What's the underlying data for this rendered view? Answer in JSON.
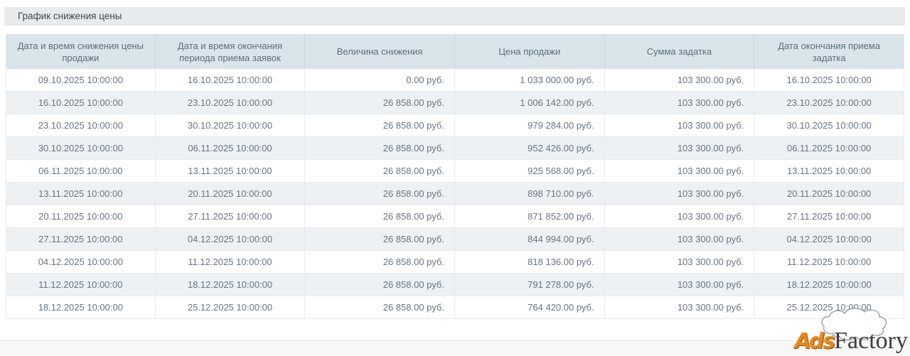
{
  "title": "График снижения цены",
  "table": {
    "columns": [
      {
        "label": "Дата и время снижения цены продажи",
        "align": "center"
      },
      {
        "label": "Дата и время окончания периода приема заявок",
        "align": "center"
      },
      {
        "label": "Величина снижения",
        "align": "right"
      },
      {
        "label": "Цена продажи",
        "align": "right"
      },
      {
        "label": "Сумма задатка",
        "align": "right"
      },
      {
        "label": "Дата окончания приема задатка",
        "align": "center"
      }
    ],
    "rows": [
      [
        "09.10.2025 10:00:00",
        "16.10.2025 10:00:00",
        "0.00 руб.",
        "1 033 000.00 руб.",
        "103 300.00 руб.",
        "16.10.2025 10:00:00"
      ],
      [
        "16.10.2025 10:00:00",
        "23.10.2025 10:00:00",
        "26 858.00 руб.",
        "1 006 142.00 руб.",
        "103 300.00 руб.",
        "23.10.2025 10:00:00"
      ],
      [
        "23.10.2025 10:00:00",
        "30.10.2025 10:00:00",
        "26 858.00 руб.",
        "979 284.00 руб.",
        "103 300.00 руб.",
        "30.10.2025 10:00:00"
      ],
      [
        "30.10.2025 10:00:00",
        "06.11.2025 10:00:00",
        "26 858.00 руб.",
        "952 426.00 руб.",
        "103 300.00 руб.",
        "06.11.2025 10:00:00"
      ],
      [
        "06.11.2025 10:00:00",
        "13.11.2025 10:00:00",
        "26 858.00 руб.",
        "925 568.00 руб.",
        "103 300.00 руб.",
        "13.11.2025 10:00:00"
      ],
      [
        "13.11.2025 10:00:00",
        "20.11.2025 10:00:00",
        "26 858.00 руб.",
        "898 710.00 руб.",
        "103 300.00 руб.",
        "20.11.2025 10:00:00"
      ],
      [
        "20.11.2025 10:00:00",
        "27.11.2025 10:00:00",
        "26 858.00 руб.",
        "871 852.00 руб.",
        "103 300.00 руб.",
        "27.11.2025 10:00:00"
      ],
      [
        "27.11.2025 10:00:00",
        "04.12.2025 10:00:00",
        "26 858.00 руб.",
        "844 994.00 руб.",
        "103 300.00 руб.",
        "04.12.2025 10:00:00"
      ],
      [
        "04.12.2025 10:00:00",
        "11.12.2025 10:00:00",
        "26 858.00 руб.",
        "818 136.00 руб.",
        "103 300.00 руб.",
        "11.12.2025 10:00:00"
      ],
      [
        "11.12.2025 10:00:00",
        "18.12.2025 10:00:00",
        "26 858.00 руб.",
        "791 278.00 руб.",
        "103 300.00 руб.",
        "18.12.2025 10:00:00"
      ],
      [
        "18.12.2025 10:00:00",
        "25.12.2025 10:00:00",
        "26 858.00 руб.",
        "764 420.00 руб.",
        "103 300.00 руб.",
        "25.12.2025 10:00:00"
      ]
    ]
  },
  "watermark": {
    "part1": "Ads",
    "part2": "Factory"
  },
  "colors": {
    "title_bar_bg": "#e9eaeb",
    "header_bg": "#d9e5eb",
    "even_row_bg": "#eef1f4",
    "cell_text": "#69747e",
    "header_text": "#5d6d78",
    "watermark_orange": "#e8891b",
    "watermark_dark": "#3c3c3c"
  }
}
